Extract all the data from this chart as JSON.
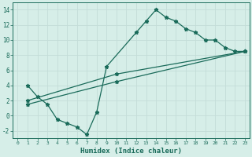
{
  "line1_x": [
    1,
    2,
    3,
    4,
    5,
    6,
    7,
    8,
    9,
    12,
    13,
    14,
    15,
    16,
    17,
    18,
    19,
    20,
    21,
    22,
    23
  ],
  "line1_y": [
    4,
    2.5,
    1.5,
    -0.5,
    -1.0,
    -1.5,
    -2.5,
    0.5,
    6.5,
    11,
    12.5,
    14,
    13,
    12.5,
    11.5,
    11,
    10,
    10,
    9,
    8.5,
    8.5
  ],
  "line2_x": [
    1,
    10,
    23
  ],
  "line2_y": [
    2,
    5.5,
    8.5
  ],
  "line3_x": [
    1,
    10,
    23
  ],
  "line3_y": [
    1.5,
    4.5,
    8.5
  ],
  "line_color": "#1a6b5a",
  "bg_color": "#d6eee8",
  "grid_color": "#c4ddd8",
  "xlabel": "Humidex (Indice chaleur)",
  "xlim": [
    -0.5,
    23.5
  ],
  "ylim": [
    -3,
    15
  ],
  "xticks": [
    0,
    1,
    2,
    3,
    4,
    5,
    6,
    7,
    8,
    9,
    10,
    11,
    12,
    13,
    14,
    15,
    16,
    17,
    18,
    19,
    20,
    21,
    22,
    23
  ],
  "yticks": [
    -2,
    0,
    2,
    4,
    6,
    8,
    10,
    12,
    14
  ]
}
